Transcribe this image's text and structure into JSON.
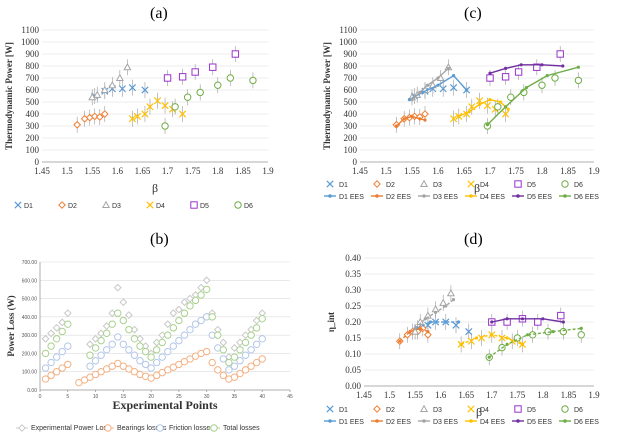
{
  "panel_labels": [
    "(a)",
    "(c)",
    "(b)",
    "(d)"
  ],
  "chart_data": [
    {
      "panel": "(a)",
      "type": "scatter",
      "ylabel": "Thermodynamic Power [W]",
      "xlabel": "β",
      "xlim": [
        1.45,
        1.9
      ],
      "ylim": [
        0,
        1100
      ],
      "xticks": [
        "1.45",
        "1.5",
        "1.55",
        "1.6",
        "1.65",
        "1.7",
        "1.75",
        "1.8",
        "1.85",
        "1.9"
      ],
      "yticks": [
        "0",
        "100",
        "200",
        "300",
        "400",
        "500",
        "600",
        "700",
        "800",
        "900",
        "1000",
        "1100"
      ],
      "series": [
        {
          "name": "D1",
          "color": "#5b9bd5",
          "marker": "x",
          "x": [
            1.555,
            1.575,
            1.59,
            1.61,
            1.63,
            1.655
          ],
          "y": [
            550,
            590,
            610,
            610,
            620,
            600
          ]
        },
        {
          "name": "D2",
          "color": "#ed7d31",
          "marker": "diamond",
          "x": [
            1.52,
            1.535,
            1.545,
            1.555,
            1.565,
            1.575
          ],
          "y": [
            310,
            360,
            370,
            380,
            375,
            400
          ]
        },
        {
          "name": "D3",
          "color": "#a5a5a5",
          "marker": "triangle",
          "x": [
            1.55,
            1.56,
            1.575,
            1.59,
            1.605,
            1.62
          ],
          "y": [
            540,
            560,
            600,
            640,
            700,
            790
          ]
        },
        {
          "name": "D4",
          "color": "#ffc000",
          "marker": "x",
          "x": [
            1.63,
            1.64,
            1.655,
            1.665,
            1.68,
            1.695,
            1.71,
            1.73
          ],
          "y": [
            360,
            380,
            400,
            460,
            510,
            470,
            440,
            400
          ]
        },
        {
          "name": "D5",
          "color": "#9933cc",
          "marker": "square",
          "x": [
            1.7,
            1.73,
            1.755,
            1.79,
            1.835
          ],
          "y": [
            700,
            710,
            750,
            790,
            900
          ]
        },
        {
          "name": "D6",
          "color": "#70ad47",
          "marker": "circle",
          "x": [
            1.695,
            1.715,
            1.74,
            1.765,
            1.8,
            1.825,
            1.87
          ],
          "y": [
            300,
            460,
            540,
            580,
            640,
            700,
            680
          ]
        }
      ],
      "legend": [
        "D1",
        "D2",
        "D3",
        "D4",
        "D5",
        "D6"
      ]
    },
    {
      "panel": "(c)",
      "type": "line",
      "ylabel": "Thermodynamic Power [W]",
      "xlabel": "β",
      "xlim": [
        1.45,
        1.9
      ],
      "ylim": [
        0,
        1100
      ],
      "xticks": [
        "1.45",
        "1.5",
        "1.55",
        "1.6",
        "1.65",
        "1.7",
        "1.75",
        "1.8",
        "1.85",
        "1.9"
      ],
      "yticks": [
        "0",
        "100",
        "200",
        "300",
        "400",
        "500",
        "600",
        "700",
        "800",
        "900",
        "1000",
        "1100"
      ],
      "series": [
        {
          "name": "D1",
          "color": "#5b9bd5",
          "marker": "x",
          "x": [
            1.555,
            1.575,
            1.59,
            1.61,
            1.63,
            1.655
          ],
          "y": [
            550,
            590,
            610,
            610,
            620,
            600
          ]
        },
        {
          "name": "D2",
          "color": "#ed7d31",
          "marker": "diamond",
          "x": [
            1.52,
            1.535,
            1.545,
            1.555,
            1.565,
            1.575
          ],
          "y": [
            310,
            360,
            370,
            380,
            375,
            400
          ]
        },
        {
          "name": "D3",
          "color": "#a5a5a5",
          "marker": "triangle",
          "x": [
            1.55,
            1.56,
            1.575,
            1.59,
            1.605,
            1.62
          ],
          "y": [
            540,
            560,
            600,
            640,
            700,
            790
          ]
        },
        {
          "name": "D4",
          "color": "#ffc000",
          "marker": "x",
          "x": [
            1.63,
            1.64,
            1.655,
            1.665,
            1.68,
            1.695,
            1.71,
            1.73
          ],
          "y": [
            360,
            380,
            400,
            460,
            510,
            470,
            440,
            400
          ]
        },
        {
          "name": "D5",
          "color": "#9933cc",
          "marker": "square",
          "x": [
            1.7,
            1.73,
            1.755,
            1.79,
            1.835
          ],
          "y": [
            700,
            710,
            750,
            790,
            900
          ]
        },
        {
          "name": "D6",
          "color": "#70ad47",
          "marker": "circle",
          "x": [
            1.695,
            1.715,
            1.74,
            1.765,
            1.8,
            1.825,
            1.87
          ],
          "y": [
            300,
            460,
            540,
            580,
            640,
            700,
            680
          ]
        },
        {
          "name": "D1 EES",
          "color": "#5b9bd5",
          "line": true,
          "x": [
            1.545,
            1.57,
            1.6,
            1.63,
            1.655
          ],
          "y": [
            520,
            580,
            640,
            720,
            600
          ]
        },
        {
          "name": "D2 EES",
          "color": "#ed7d31",
          "line": true,
          "x": [
            1.52,
            1.535,
            1.55,
            1.565,
            1.575
          ],
          "y": [
            300,
            360,
            380,
            360,
            350
          ]
        },
        {
          "name": "D3 EES",
          "color": "#a5a5a5",
          "line": true,
          "x": [
            1.55,
            1.565,
            1.58,
            1.6,
            1.62
          ],
          "y": [
            520,
            580,
            640,
            700,
            780
          ]
        },
        {
          "name": "D4 EES",
          "color": "#ffc000",
          "line": true,
          "x": [
            1.64,
            1.66,
            1.68,
            1.7,
            1.72,
            1.735
          ],
          "y": [
            380,
            420,
            480,
            520,
            500,
            440
          ]
        },
        {
          "name": "D5 EES",
          "color": "#7030a0",
          "line": true,
          "x": [
            1.7,
            1.73,
            1.76,
            1.8,
            1.84
          ],
          "y": [
            740,
            780,
            810,
            810,
            800
          ]
        },
        {
          "name": "D6 EES",
          "color": "#70ad47",
          "line": true,
          "x": [
            1.695,
            1.73,
            1.77,
            1.81,
            1.87
          ],
          "y": [
            310,
            460,
            620,
            720,
            790
          ]
        }
      ],
      "legend": [
        "D1",
        "D2",
        "D3",
        "D4",
        "D5",
        "D6",
        "D1 EES",
        "D2 EES",
        "D3 EES",
        "D4 EES",
        "D5 EES",
        "D6 EES"
      ]
    },
    {
      "panel": "(b)",
      "type": "scatter",
      "ylabel": "Power Loss (W)",
      "xlabel": "Experimental Points",
      "xlim": [
        0,
        45
      ],
      "ylim": [
        0,
        700
      ],
      "xticks": [
        "0",
        "5",
        "10",
        "15",
        "20",
        "25",
        "30",
        "35",
        "40",
        "45"
      ],
      "yticks": [
        "0.00",
        "100.00",
        "200.00",
        "300.00",
        "400.00",
        "500.00",
        "600.00",
        "700.00"
      ],
      "series": [
        {
          "name": "Experimental Power Loss",
          "color": "#c8c8c8",
          "marker": "diamond",
          "x": [
            1,
            2,
            3,
            4,
            5,
            9,
            10,
            11,
            12,
            13,
            14,
            15,
            16,
            17,
            18,
            19,
            20,
            21,
            22,
            23,
            24,
            25,
            26,
            27,
            28,
            29,
            30,
            31,
            32,
            33,
            34,
            35,
            36,
            37,
            38,
            39,
            40
          ],
          "y": [
            280,
            310,
            340,
            370,
            420,
            250,
            280,
            310,
            350,
            420,
            560,
            480,
            410,
            330,
            280,
            240,
            200,
            260,
            300,
            360,
            420,
            440,
            480,
            500,
            520,
            560,
            600,
            420,
            330,
            260,
            180,
            230,
            260,
            300,
            330,
            380,
            420
          ]
        },
        {
          "name": "Bearings losses",
          "color": "#f4b183",
          "marker": "circle",
          "x": [
            1,
            2,
            3,
            4,
            5,
            7,
            8,
            9,
            10,
            11,
            12,
            13,
            14,
            15,
            16,
            17,
            18,
            19,
            20,
            21,
            22,
            23,
            24,
            25,
            26,
            27,
            28,
            29,
            30,
            31,
            32,
            33,
            34,
            35,
            36,
            37,
            38,
            39,
            40
          ],
          "y": [
            60,
            80,
            100,
            120,
            140,
            40,
            55,
            70,
            85,
            100,
            115,
            130,
            145,
            130,
            115,
            100,
            85,
            75,
            65,
            80,
            95,
            110,
            125,
            140,
            155,
            170,
            185,
            200,
            210,
            150,
            110,
            80,
            60,
            70,
            90,
            110,
            130,
            150,
            170
          ]
        },
        {
          "name": "Friction losses",
          "color": "#b4c7e7",
          "marker": "circle",
          "x": [
            1,
            2,
            3,
            4,
            5,
            9,
            10,
            11,
            12,
            13,
            14,
            15,
            16,
            17,
            18,
            19,
            20,
            21,
            22,
            23,
            24,
            25,
            26,
            27,
            28,
            29,
            30,
            31,
            32,
            33,
            34,
            35,
            36,
            37,
            38,
            39,
            40
          ],
          "y": [
            120,
            150,
            180,
            210,
            240,
            130,
            160,
            190,
            220,
            250,
            290,
            250,
            220,
            190,
            160,
            140,
            120,
            150,
            180,
            210,
            240,
            270,
            300,
            330,
            360,
            380,
            400,
            300,
            230,
            170,
            110,
            130,
            160,
            190,
            220,
            250,
            280
          ]
        },
        {
          "name": "Total losses",
          "color": "#a9d18e",
          "marker": "circle",
          "x": [
            1,
            2,
            3,
            4,
            5,
            9,
            10,
            11,
            12,
            13,
            14,
            15,
            16,
            17,
            18,
            19,
            20,
            21,
            22,
            23,
            24,
            25,
            26,
            27,
            28,
            29,
            30,
            31,
            32,
            33,
            34,
            35,
            36,
            37,
            38,
            39,
            40
          ],
          "y": [
            200,
            240,
            280,
            320,
            360,
            190,
            230,
            270,
            310,
            360,
            420,
            380,
            330,
            280,
            240,
            210,
            180,
            220,
            260,
            300,
            340,
            380,
            420,
            460,
            490,
            520,
            550,
            400,
            300,
            220,
            150,
            180,
            220,
            260,
            300,
            340,
            390
          ]
        }
      ],
      "legend": [
        "Experimental Power Loss",
        "Bearings losses",
        "Friction losses",
        "Total losses"
      ]
    },
    {
      "panel": "(d)",
      "type": "line",
      "ylabel": "η_int",
      "xlabel": "β",
      "xlim": [
        1.45,
        1.9
      ],
      "ylim": [
        0,
        0.4
      ],
      "xticks": [
        "1.45",
        "1.5",
        "1.55",
        "1.6",
        "1.65",
        "1.7",
        "1.75",
        "1.8",
        "1.85",
        "1.9"
      ],
      "yticks": [
        "0.00",
        "0.05",
        "0.10",
        "0.15",
        "0.20",
        "0.25",
        "0.30",
        "0.35",
        "0.40"
      ],
      "series": [
        {
          "name": "D1",
          "color": "#5b9bd5",
          "marker": "x",
          "x": [
            1.555,
            1.575,
            1.59,
            1.61,
            1.63,
            1.655
          ],
          "y": [
            0.18,
            0.19,
            0.2,
            0.2,
            0.19,
            0.17
          ]
        },
        {
          "name": "D2",
          "color": "#ed7d31",
          "marker": "diamond",
          "x": [
            1.52,
            1.535,
            1.545,
            1.555,
            1.565,
            1.575
          ],
          "y": [
            0.14,
            0.16,
            0.17,
            0.17,
            0.18,
            0.16
          ]
        },
        {
          "name": "D3",
          "color": "#a5a5a5",
          "marker": "triangle",
          "x": [
            1.55,
            1.56,
            1.575,
            1.59,
            1.605,
            1.62
          ],
          "y": [
            0.17,
            0.2,
            0.22,
            0.24,
            0.26,
            0.29
          ]
        },
        {
          "name": "D4",
          "color": "#ffc000",
          "marker": "x",
          "x": [
            1.64,
            1.66,
            1.68,
            1.7,
            1.72,
            1.74,
            1.76
          ],
          "y": [
            0.13,
            0.14,
            0.15,
            0.16,
            0.15,
            0.14,
            0.13
          ]
        },
        {
          "name": "D5",
          "color": "#9933cc",
          "marker": "square",
          "x": [
            1.7,
            1.73,
            1.76,
            1.79,
            1.835
          ],
          "y": [
            0.2,
            0.2,
            0.21,
            0.2,
            0.22
          ]
        },
        {
          "name": "D6",
          "color": "#70ad47",
          "marker": "circle",
          "x": [
            1.695,
            1.72,
            1.75,
            1.78,
            1.81,
            1.84,
            1.875
          ],
          "y": [
            0.09,
            0.12,
            0.15,
            0.16,
            0.17,
            0.17,
            0.16
          ]
        },
        {
          "name": "D1 EES",
          "color": "#5b9bd5",
          "line": true,
          "x": [
            1.555,
            1.58,
            1.61,
            1.635
          ],
          "y": [
            0.18,
            0.2,
            0.2,
            0.2
          ]
        },
        {
          "name": "D2 EES",
          "color": "#ed7d31",
          "line": true,
          "x": [
            1.52,
            1.54,
            1.56,
            1.575
          ],
          "y": [
            0.14,
            0.17,
            0.18,
            0.17
          ]
        },
        {
          "name": "D3 EES",
          "color": "#a5a5a5",
          "line": true,
          "x": [
            1.55,
            1.57,
            1.59,
            1.61,
            1.625
          ],
          "y": [
            0.18,
            0.21,
            0.23,
            0.25,
            0.27
          ]
        },
        {
          "name": "D4 EES",
          "color": "#ffc000",
          "line": true,
          "x": [
            1.64,
            1.67,
            1.7,
            1.73,
            1.76
          ],
          "y": [
            0.13,
            0.15,
            0.16,
            0.15,
            0.13
          ]
        },
        {
          "name": "D5 EES",
          "color": "#7030a0",
          "line": true,
          "x": [
            1.7,
            1.73,
            1.76,
            1.8,
            1.84
          ],
          "y": [
            0.2,
            0.21,
            0.21,
            0.21,
            0.2
          ]
        },
        {
          "name": "D6 EES",
          "color": "#70ad47",
          "line": true,
          "x": [
            1.695,
            1.73,
            1.77,
            1.82,
            1.875
          ],
          "y": [
            0.09,
            0.13,
            0.16,
            0.17,
            0.18
          ]
        }
      ],
      "legend": [
        "D1",
        "D2",
        "D3",
        "D4",
        "D5",
        "D6",
        "D1 EES",
        "D2 EES",
        "D3 EES",
        "D4 EES",
        "D5 EES",
        "D6 EES"
      ]
    }
  ]
}
